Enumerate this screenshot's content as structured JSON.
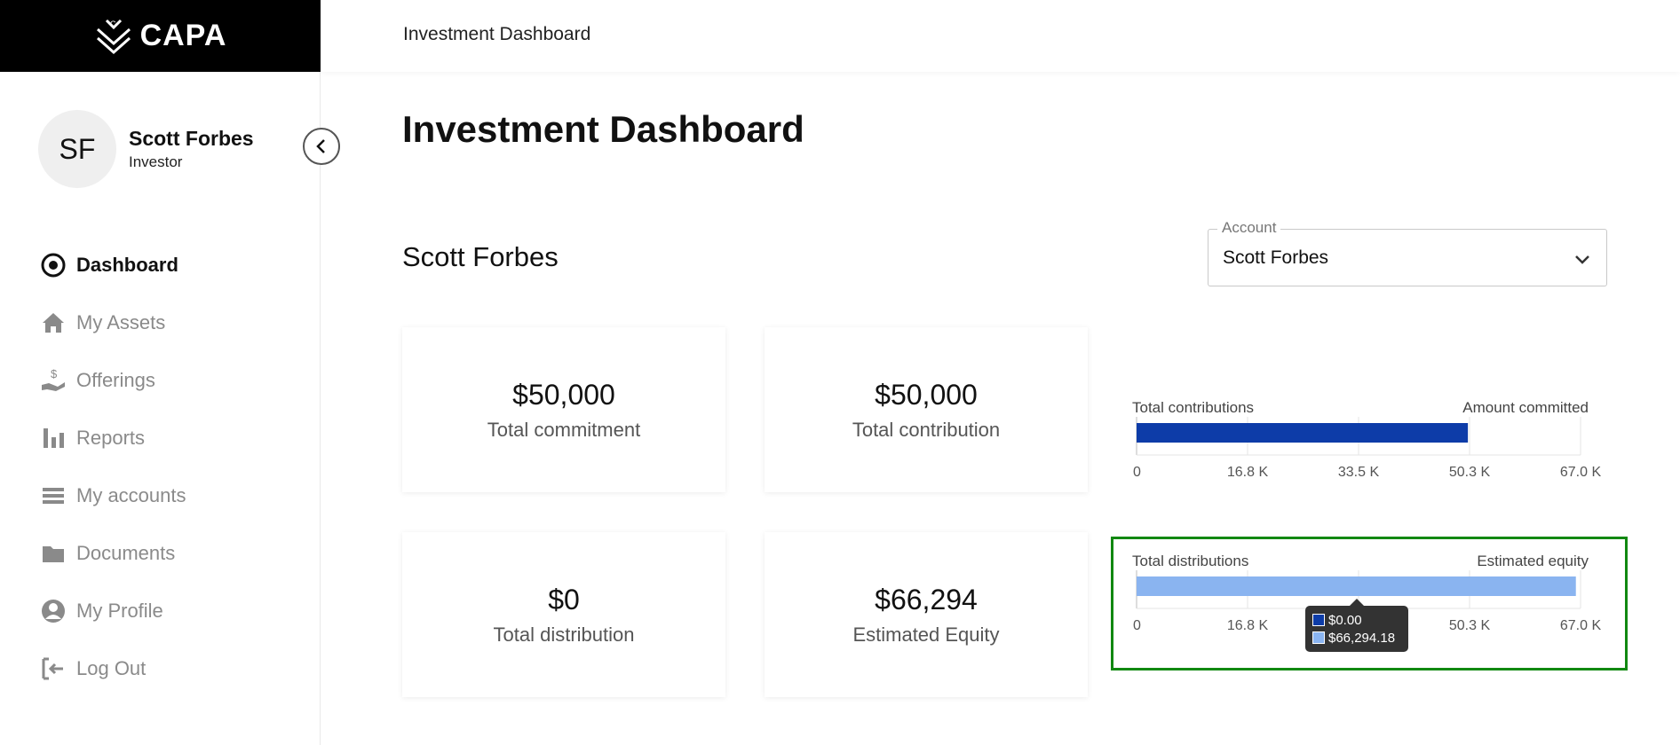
{
  "brand": {
    "name": "CAPA"
  },
  "topbar": {
    "title": "Investment Dashboard"
  },
  "user": {
    "initials": "SF",
    "name": "Scott Forbes",
    "role": "Investor"
  },
  "nav": {
    "items": [
      {
        "label": "Dashboard",
        "icon": "target-icon",
        "active": true
      },
      {
        "label": "My Assets",
        "icon": "home-icon"
      },
      {
        "label": "Offerings",
        "icon": "hand-dollar-icon"
      },
      {
        "label": "Reports",
        "icon": "bar-chart-icon"
      },
      {
        "label": "My accounts",
        "icon": "list-icon"
      },
      {
        "label": "Documents",
        "icon": "folder-icon"
      },
      {
        "label": "My Profile",
        "icon": "user-circle-icon"
      },
      {
        "label": "Log Out",
        "icon": "logout-icon"
      }
    ]
  },
  "page": {
    "title": "Investment Dashboard",
    "section_title": "Scott Forbes"
  },
  "account": {
    "label": "Account",
    "value": "Scott Forbes"
  },
  "cards": [
    {
      "value": "$50,000",
      "label": "Total commitment"
    },
    {
      "value": "$50,000",
      "label": "Total contribution"
    },
    {
      "value": "$0",
      "label": "Total distribution"
    },
    {
      "value": "$66,294",
      "label": "Estimated Equity"
    }
  ],
  "colors": {
    "dark_bar": "#0d3ca8",
    "light_bar": "#8ab4f0",
    "highlight": "#118811"
  },
  "chart_data": [
    {
      "type": "bar",
      "orientation": "horizontal",
      "left_label": "Total contributions",
      "right_label": "Amount committed",
      "tick_labels": [
        "0",
        "16.8 K",
        "33.5 K",
        "50.3 K",
        "67.0 K"
      ],
      "ticks": [
        0,
        16750,
        33500,
        50250,
        67000
      ],
      "xlim": [
        0,
        67000
      ],
      "series": [
        {
          "values": [
            50000
          ],
          "color": "#0d3ca8"
        }
      ]
    },
    {
      "type": "bar",
      "orientation": "horizontal",
      "left_label": "Total distributions",
      "right_label": "Estimated equity",
      "tick_labels": [
        "0",
        "16.8 K",
        "33.5 K",
        "50.3 K",
        "67.0 K"
      ],
      "ticks": [
        0,
        16750,
        33500,
        50250,
        67000
      ],
      "xlim": [
        0,
        67000
      ],
      "series": [
        {
          "values": [
            66294.18
          ],
          "color": "#8ab4f0"
        },
        {
          "values": [
            0
          ],
          "color": "#0d3ca8"
        }
      ],
      "tooltip": [
        "$0.00",
        "$66,294.18"
      ]
    }
  ]
}
